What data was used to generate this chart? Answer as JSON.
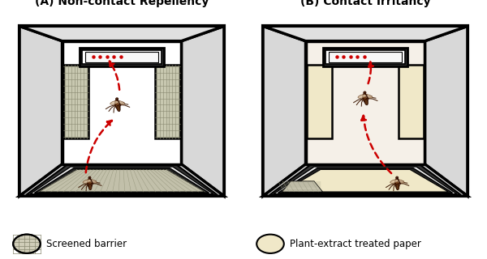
{
  "title_A": "(A) Non-contact Repellency",
  "title_B": "(B) Contact Irritancy",
  "legend_A": "Screened barrier",
  "legend_B": "Plant-extract treated paper",
  "bg_color": "#ffffff",
  "wall_gray": "#d0d0d0",
  "wall_dark": "#1a1a1a",
  "back_wall_color": "#ffffff",
  "side_panel_color": "#c8c8b0",
  "side_panel_B_color": "#f0e8c8",
  "floor_screen_color": "#d0cdb8",
  "floor_plain_color": "#f0e8c8",
  "screen_grid_color": "#999980",
  "exit_box_outer": "#2a2a2a",
  "exit_box_inner": "#f8f8f8",
  "arrow_color": "#cc0000",
  "figsize": [
    6.0,
    3.2
  ],
  "dpi": 100
}
